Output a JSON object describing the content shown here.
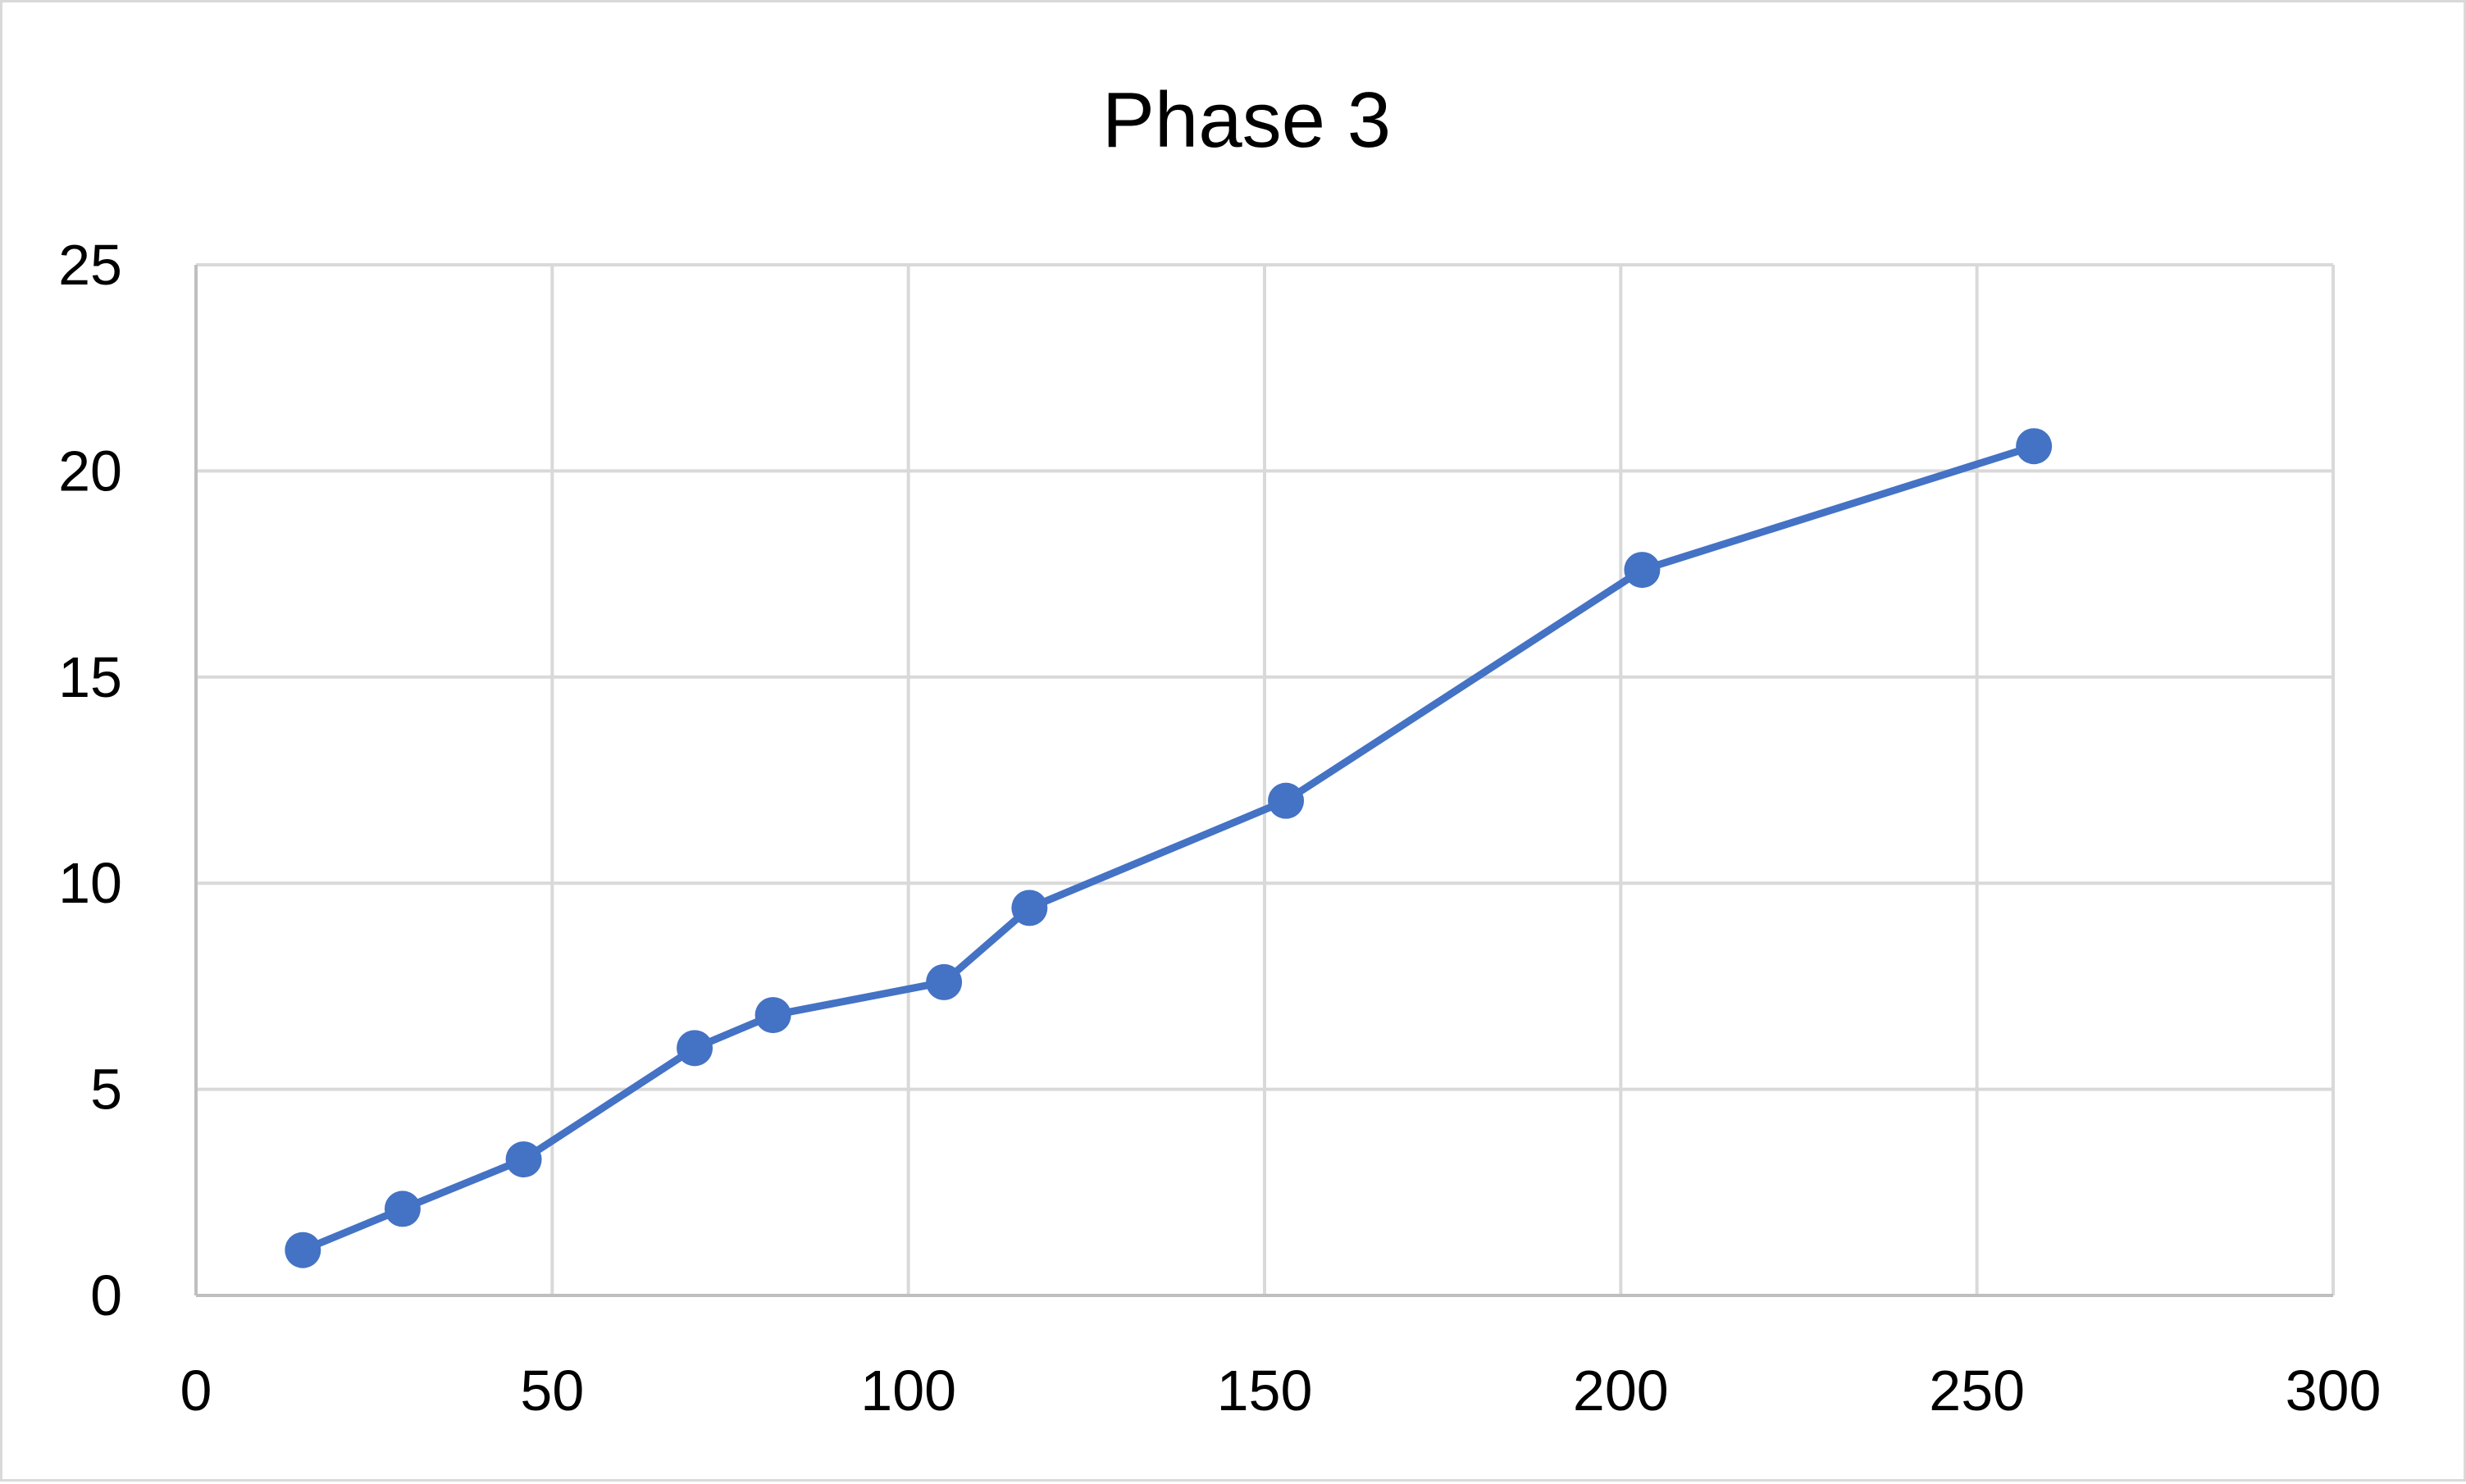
{
  "chart_data": {
    "type": "scatter",
    "title": "Phase 3",
    "xlabel": "",
    "ylabel": "",
    "xlim": [
      0,
      300
    ],
    "ylim": [
      0,
      25
    ],
    "x_ticks": [
      0,
      50,
      100,
      150,
      200,
      250,
      300
    ],
    "y_ticks": [
      0,
      5,
      10,
      15,
      20,
      25
    ],
    "grid": true,
    "legend": "none",
    "series": [
      {
        "color": "#4472c4",
        "lines": true,
        "markers": true,
        "points": [
          {
            "x": 15,
            "y": 1.1
          },
          {
            "x": 29,
            "y": 2.1
          },
          {
            "x": 46,
            "y": 3.3
          },
          {
            "x": 70,
            "y": 6.0
          },
          {
            "x": 81,
            "y": 6.8
          },
          {
            "x": 105,
            "y": 7.6
          },
          {
            "x": 117,
            "y": 9.4
          },
          {
            "x": 153,
            "y": 12.0
          },
          {
            "x": 203,
            "y": 17.6
          },
          {
            "x": 258,
            "y": 20.6
          }
        ]
      }
    ]
  }
}
